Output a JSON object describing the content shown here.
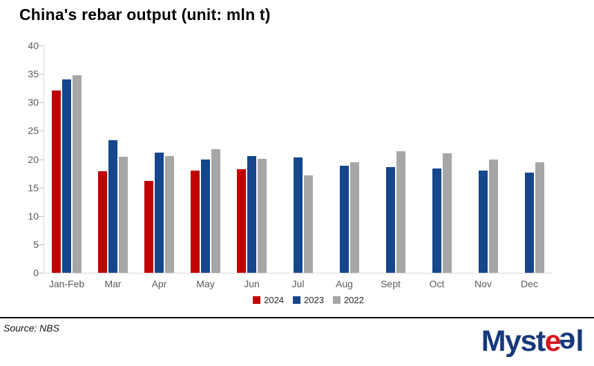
{
  "title": "China's rebar output (unit: mln t)",
  "footer": {
    "source": "Source: NBS"
  },
  "logo": {
    "pre": "Myst",
    "e_red": "e",
    "e_flipped": "e",
    "post": "l",
    "blue": "#17397c",
    "red": "#d6161f"
  },
  "colors": {
    "axis_line": "#d9d9d9",
    "tick_mark": "#bfbfbf",
    "axis_label": "#595959",
    "legend_text": "#262626",
    "series_2024": "#c00000",
    "series_2023": "#16468c",
    "series_2022": "#a6a6a6"
  },
  "chart_data": {
    "type": "bar",
    "title": "China's rebar output (unit: mln t)",
    "categories": [
      "Jan-Feb",
      "Mar",
      "Apr",
      "May",
      "Jun",
      "Jul",
      "Aug",
      "Sept",
      "Oct",
      "Nov",
      "Dec"
    ],
    "series": [
      {
        "name": "2024",
        "color": "#c00000",
        "values": [
          32.1,
          17.9,
          16.2,
          18.0,
          18.2,
          null,
          null,
          null,
          null,
          null,
          null
        ]
      },
      {
        "name": "2023",
        "color": "#16468c",
        "values": [
          34.0,
          23.3,
          21.1,
          19.9,
          20.6,
          20.3,
          18.8,
          18.6,
          18.4,
          18.0,
          17.6
        ]
      },
      {
        "name": "2022",
        "color": "#a6a6a6",
        "values": [
          34.8,
          20.4,
          20.5,
          21.8,
          20.1,
          17.1,
          19.4,
          21.4,
          21.0,
          19.9,
          19.5
        ]
      }
    ],
    "xlabel": "",
    "ylabel": "",
    "ylim": [
      0,
      40
    ],
    "ytick_step": 5,
    "grid": false,
    "legend_position": "bottom"
  }
}
